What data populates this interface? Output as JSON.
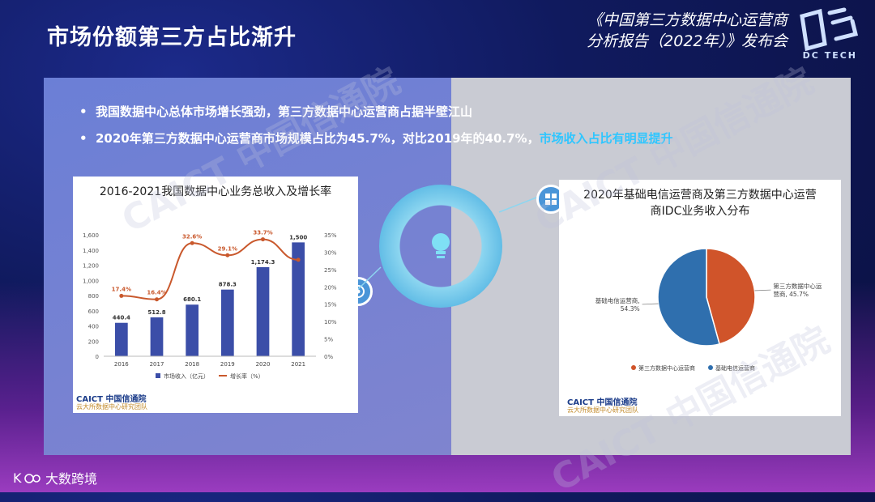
{
  "page": {
    "title": "市场份额第三方占比渐升"
  },
  "event": {
    "line1": "《中国第三方数据中心运营商",
    "line2": "分析报告（2022年）》发布会"
  },
  "brand": {
    "name": "DC TECH"
  },
  "bullets": [
    {
      "text": "我国数据中心总体市场增长强劲，第三方数据中心运营商占据半壁江山",
      "highlight": ""
    },
    {
      "text": "2020年第三方数据中心运营商市场规模占比为45.7%，对比2019年的40.7%，",
      "highlight": "市场收入占比有明显提升"
    }
  ],
  "footer": {
    "logo_text": "大数跨境"
  },
  "watermark_text": "CAICT 中国信通院",
  "chart_data": [
    {
      "type": "bar",
      "title": "2016-2021我国数据中心业务总收入及增长率",
      "categories": [
        "2016",
        "2017",
        "2018",
        "2019",
        "2020",
        "2021"
      ],
      "series": [
        {
          "name": "市场收入（亿元）",
          "type": "bar",
          "values": [
            440.4,
            512.8,
            680.1,
            878.3,
            1174.3,
            1500
          ],
          "labels": [
            "440.4",
            "512.8",
            "680.1",
            "878.3",
            "1,174.3",
            "1,500"
          ],
          "color": "#3b4ea8"
        },
        {
          "name": "增长率（%）",
          "type": "line",
          "values": [
            17.4,
            16.4,
            32.6,
            29.1,
            33.7,
            27.8
          ],
          "labels": [
            "17.4%",
            "16.4%",
            "32.6%",
            "29.1%",
            "33.7%",
            ""
          ],
          "color": "#c9582c"
        }
      ],
      "y_left_ticks": [
        "0",
        "200",
        "400",
        "600",
        "800",
        "1,000",
        "1,200",
        "1,400",
        "1,600"
      ],
      "y_left_range": [
        0,
        1600
      ],
      "y_right_ticks": [
        "0%",
        "5%",
        "10%",
        "15%",
        "20%",
        "25%",
        "30%",
        "35%"
      ],
      "y_right_range": [
        0,
        35
      ],
      "source_brand": "CAICT 中国信通院",
      "source_team": "云大所数据中心研究团队",
      "legend": "bottom"
    },
    {
      "type": "pie",
      "title": "2020年基础电信运营商及第三方数据中心运营商IDC业务收入分布",
      "title_line1": "2020年基础电信运营商及第三方数据中心运营",
      "title_line2": "商IDC业务收入分布",
      "slices": [
        {
          "name": "第三方数据中心运营商",
          "value": 45.7,
          "label_line1": "第三方数据中心运",
          "label_line2": "营商, 45.7%",
          "color": "#d0542a"
        },
        {
          "name": "基础电信运营商",
          "value": 54.3,
          "label_line1": "基础电信运营商,",
          "label_line2": "54.3%",
          "color": "#2f6fae"
        }
      ],
      "source_brand": "CAICT 中国信通院",
      "source_team": "云大所数据中心研究团队",
      "legend": "bottom"
    }
  ]
}
